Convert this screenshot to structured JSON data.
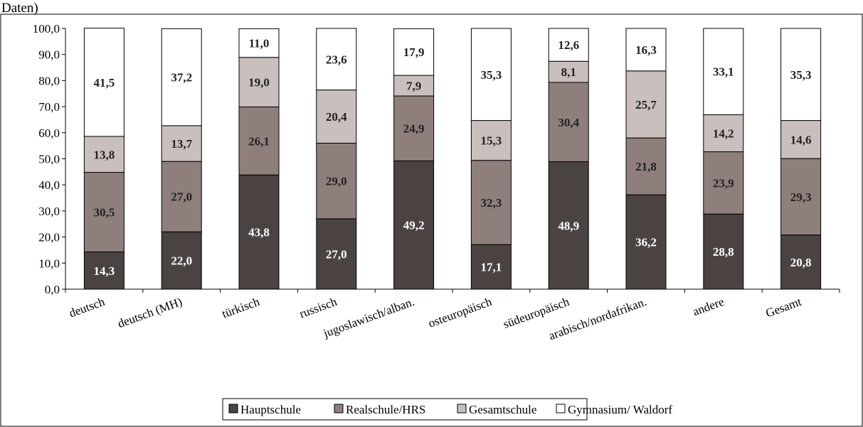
{
  "header_fragment": "Daten)",
  "colors": {
    "Hauptschule": "#4a4342",
    "Realschule/HRS": "#8f7f7c",
    "Gesamtschule": "#c9bfbd",
    "Gymnasium/ Waldorf": "#ffffff"
  },
  "chart_data": {
    "type": "bar",
    "stacked": true,
    "categories": [
      "deutsch",
      "deutsch (MH)",
      "türkisch",
      "russisch",
      "jugoslawisch/alban.",
      "osteuropäisch",
      "südeuropäisch",
      "arabisch/nordafrikan.",
      "andere",
      "Gesamt"
    ],
    "series": [
      {
        "name": "Hauptschule",
        "values": [
          14.3,
          22.0,
          43.8,
          27.0,
          49.2,
          17.1,
          48.9,
          36.2,
          28.8,
          20.8
        ]
      },
      {
        "name": "Realschule/HRS",
        "values": [
          30.5,
          27.0,
          26.1,
          29.0,
          24.9,
          32.3,
          30.4,
          21.8,
          23.9,
          29.3
        ]
      },
      {
        "name": "Gesamtschule",
        "values": [
          13.8,
          13.7,
          19.0,
          20.4,
          7.9,
          15.3,
          8.1,
          25.7,
          14.2,
          14.6
        ]
      },
      {
        "name": "Gymnasium/ Waldorf",
        "values": [
          41.5,
          37.2,
          11.0,
          23.6,
          17.9,
          35.3,
          12.6,
          16.3,
          33.1,
          35.3
        ]
      }
    ],
    "ylim": [
      0,
      100
    ],
    "yticks": [
      "0,0",
      "10,0",
      "20,0",
      "30,0",
      "40,0",
      "50,0",
      "60,0",
      "70,0",
      "80,0",
      "90,0",
      "100,0"
    ],
    "legend": [
      "Hauptschule",
      "Realschule/HRS",
      "Gesamtschule",
      "Gymnasium/ Waldorf"
    ],
    "legend_position": "bottom",
    "grid": false
  }
}
